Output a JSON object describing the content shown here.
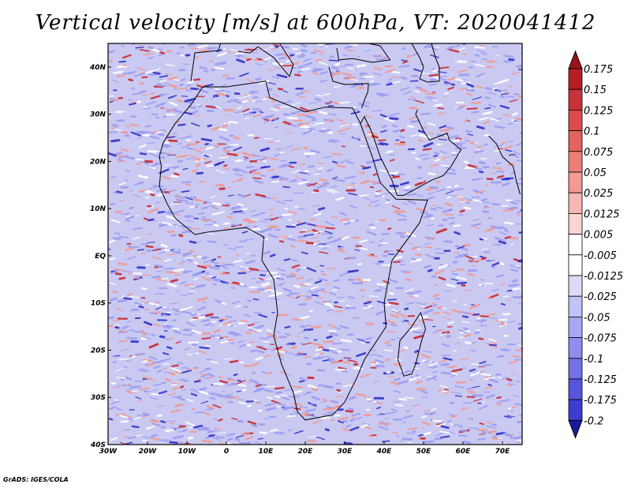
{
  "title": "Vertical velocity [m/s] at 600hPa, VT: 2020041412",
  "footer": "GrADS: IGES/COLA",
  "map": {
    "lon_range": [
      -30,
      75
    ],
    "lat_range": [
      -40,
      45
    ],
    "lon_ticks": [
      {
        "value": -30,
        "label": "30W"
      },
      {
        "value": -20,
        "label": "20W"
      },
      {
        "value": -10,
        "label": "10W"
      },
      {
        "value": 0,
        "label": "0"
      },
      {
        "value": 10,
        "label": "10E"
      },
      {
        "value": 20,
        "label": "20E"
      },
      {
        "value": 30,
        "label": "30E"
      },
      {
        "value": 40,
        "label": "40E"
      },
      {
        "value": 50,
        "label": "50E"
      },
      {
        "value": 60,
        "label": "60E"
      },
      {
        "value": 70,
        "label": "70E"
      }
    ],
    "lat_ticks": [
      {
        "value": 40,
        "label": "40N"
      },
      {
        "value": 30,
        "label": "30N"
      },
      {
        "value": 20,
        "label": "20N"
      },
      {
        "value": 10,
        "label": "10N"
      },
      {
        "value": 0,
        "label": "EQ"
      },
      {
        "value": -10,
        "label": "10S"
      },
      {
        "value": -20,
        "label": "20S"
      },
      {
        "value": -30,
        "label": "30S"
      },
      {
        "value": -40,
        "label": "40S"
      }
    ],
    "colors": {
      "strong_up": "#c8282d",
      "up": "#ef9b95",
      "down": "#9d9df0",
      "strong_down": "#3030c8"
    }
  },
  "colorbar": {
    "levels": [
      {
        "label": "0.175",
        "color": "#b41e23"
      },
      {
        "label": "0.15",
        "color": "#c8323a"
      },
      {
        "label": "0.125",
        "color": "#dc4a4d"
      },
      {
        "label": "0.1",
        "color": "#e6625f"
      },
      {
        "label": "0.075",
        "color": "#ee7e78"
      },
      {
        "label": "0.05",
        "color": "#f29a93"
      },
      {
        "label": "0.025",
        "color": "#f6b8b1"
      },
      {
        "label": "0.0125",
        "color": "#fad6d0"
      },
      {
        "label": "0.005",
        "color": "#ffffff"
      },
      {
        "label": "-0.005",
        "color": "#ffffff"
      },
      {
        "label": "-0.0125",
        "color": "#dcdcfa"
      },
      {
        "label": "-0.025",
        "color": "#c2c2f6"
      },
      {
        "label": "-0.05",
        "color": "#a8a8f2"
      },
      {
        "label": "-0.075",
        "color": "#8e8eee"
      },
      {
        "label": "-0.1",
        "color": "#7272e6"
      },
      {
        "label": "-0.125",
        "color": "#5656dc"
      },
      {
        "label": "-0.175",
        "color": "#3c3cd0"
      },
      {
        "label": "-0.2",
        "color": "#2424b8"
      }
    ],
    "top_arrow_color": "#9a1418",
    "bottom_arrow_color": "#1a1a9e"
  }
}
